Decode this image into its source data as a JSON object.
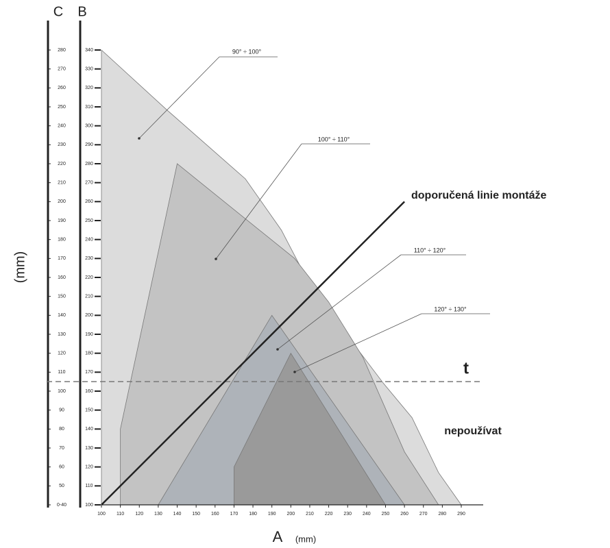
{
  "chart_data": {
    "type": "polygon",
    "axis_labels": {
      "x": "A",
      "x_unit": "(mm)",
      "y": "(mm)",
      "y_top": "B",
      "y2_top": "C"
    },
    "xlim": [
      100,
      290
    ],
    "xticks": [
      100,
      110,
      120,
      130,
      140,
      150,
      160,
      170,
      180,
      190,
      200,
      210,
      220,
      230,
      240,
      250,
      260,
      270,
      280,
      290
    ],
    "ylim": [
      100,
      340
    ],
    "yticks": [
      100,
      110,
      120,
      130,
      140,
      150,
      160,
      170,
      180,
      190,
      200,
      210,
      220,
      230,
      240,
      250,
      260,
      270,
      280,
      290,
      300,
      310,
      320,
      330,
      340
    ],
    "y2lim": [
      40,
      280
    ],
    "y2ticks": [
      {
        "value": 40,
        "label": "0-40"
      },
      50,
      60,
      70,
      80,
      90,
      100,
      110,
      120,
      130,
      140,
      150,
      160,
      170,
      180,
      190,
      200,
      210,
      220,
      230,
      240,
      250,
      260,
      270,
      280
    ],
    "series": [
      {
        "name": "90° ÷ 100°",
        "color": "#dcdcdc",
        "x": [
          100,
          100,
          135,
          176,
          195,
          207,
          227,
          249,
          264,
          278,
          290
        ],
        "y": [
          100,
          340,
          308,
          272,
          245,
          222,
          193,
          164,
          146,
          117,
          100
        ]
      },
      {
        "name": "100° ÷ 110°",
        "color": "#c3c3c3",
        "x": [
          110,
          110,
          140,
          202,
          220,
          238,
          260,
          278
        ],
        "y": [
          100,
          140,
          280,
          230,
          207,
          178,
          128,
          100
        ]
      },
      {
        "name": "110° ÷ 120°",
        "color": "#aeb3b9",
        "x": [
          130,
          190,
          260
        ],
        "y": [
          100,
          200,
          100
        ]
      },
      {
        "name": "120° ÷ 130°",
        "color": "#9a9a9a",
        "x": [
          170,
          170,
          200,
          250
        ],
        "y": [
          100,
          120,
          180,
          100
        ]
      }
    ],
    "reference_line": {
      "name": "doporučená linie montáže",
      "color": "#222222",
      "x": [
        100,
        260
      ],
      "y": [
        100,
        260
      ]
    },
    "threshold": {
      "label": "t",
      "value": 165
    },
    "annotation": "nepoužívat"
  }
}
